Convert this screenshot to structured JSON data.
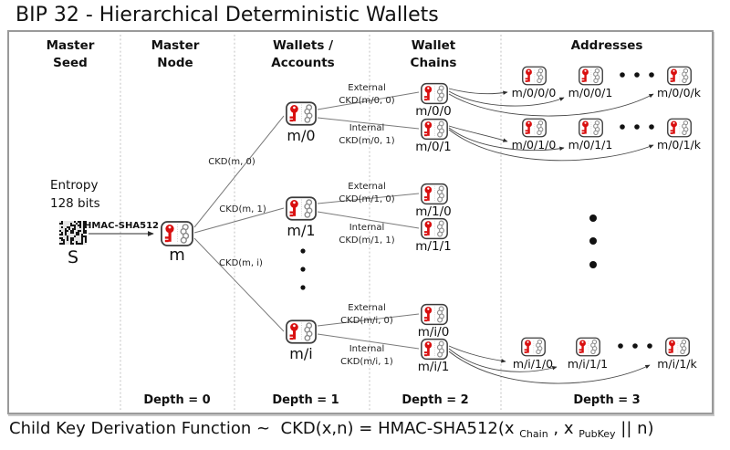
{
  "title": "BIP 32 - Hierarchical Deterministic Wallets",
  "columns": [
    {
      "label": "Master\nSeed"
    },
    {
      "label": "Master\nNode"
    },
    {
      "label": "Wallets /\nAccounts"
    },
    {
      "label": "Wallet\nChains"
    },
    {
      "label": "Addresses"
    }
  ],
  "depths": [
    "Depth = 0",
    "Depth = 1",
    "Depth = 2",
    "Depth = 3"
  ],
  "seed": {
    "entropy": "Entropy\n128 bits",
    "label": "S",
    "hash_label": "HMAC-SHA512"
  },
  "master": {
    "label": "m"
  },
  "wallets": [
    {
      "label": "m/0"
    },
    {
      "label": "m/1"
    },
    {
      "label": "m/i"
    }
  ],
  "ckd_edges": [
    "CKD(m, 0)",
    "CKD(m, 1)",
    "CKD(m, i)"
  ],
  "groups": [
    {
      "external": "External\nCKD(m/0, 0)",
      "internal": "Internal\nCKD(m/0, 1)",
      "chains": [
        "m/0/0",
        "m/0/1"
      ]
    },
    {
      "external": "External\nCKD(m/1, 0)",
      "internal": "Internal\nCKD(m/1, 1)",
      "chains": [
        "m/1/0",
        "m/1/1"
      ]
    },
    {
      "external": "External\nCKD(m/i, 0)",
      "internal": "Internal\nCKD(m/i, 1)",
      "chains": [
        "m/i/0",
        "m/i/1"
      ]
    }
  ],
  "addresses": [
    {
      "items": [
        "m/0/0/0",
        "m/0/0/1",
        "m/0/0/k"
      ]
    },
    {
      "items": [
        "m/0/1/0",
        "m/0/1/1",
        "m/0/1/k"
      ]
    },
    {
      "items": [
        "m/i/1/0",
        "m/i/1/1",
        "m/i/1/k"
      ]
    }
  ],
  "formula": {
    "prefix": "Child Key Derivation Function ~  CKD(x,n) = HMAC-SHA512(x ",
    "sub_chain": "Chain",
    "mid": " , x ",
    "sub_pubkey": "PubKey",
    "suffix": " || n)"
  },
  "colors": {
    "key_red": "#d90f0f",
    "chain_gray": "#8a8a8a",
    "line_gray": "#7a7a7a",
    "border_gray": "#9a9a9a"
  }
}
